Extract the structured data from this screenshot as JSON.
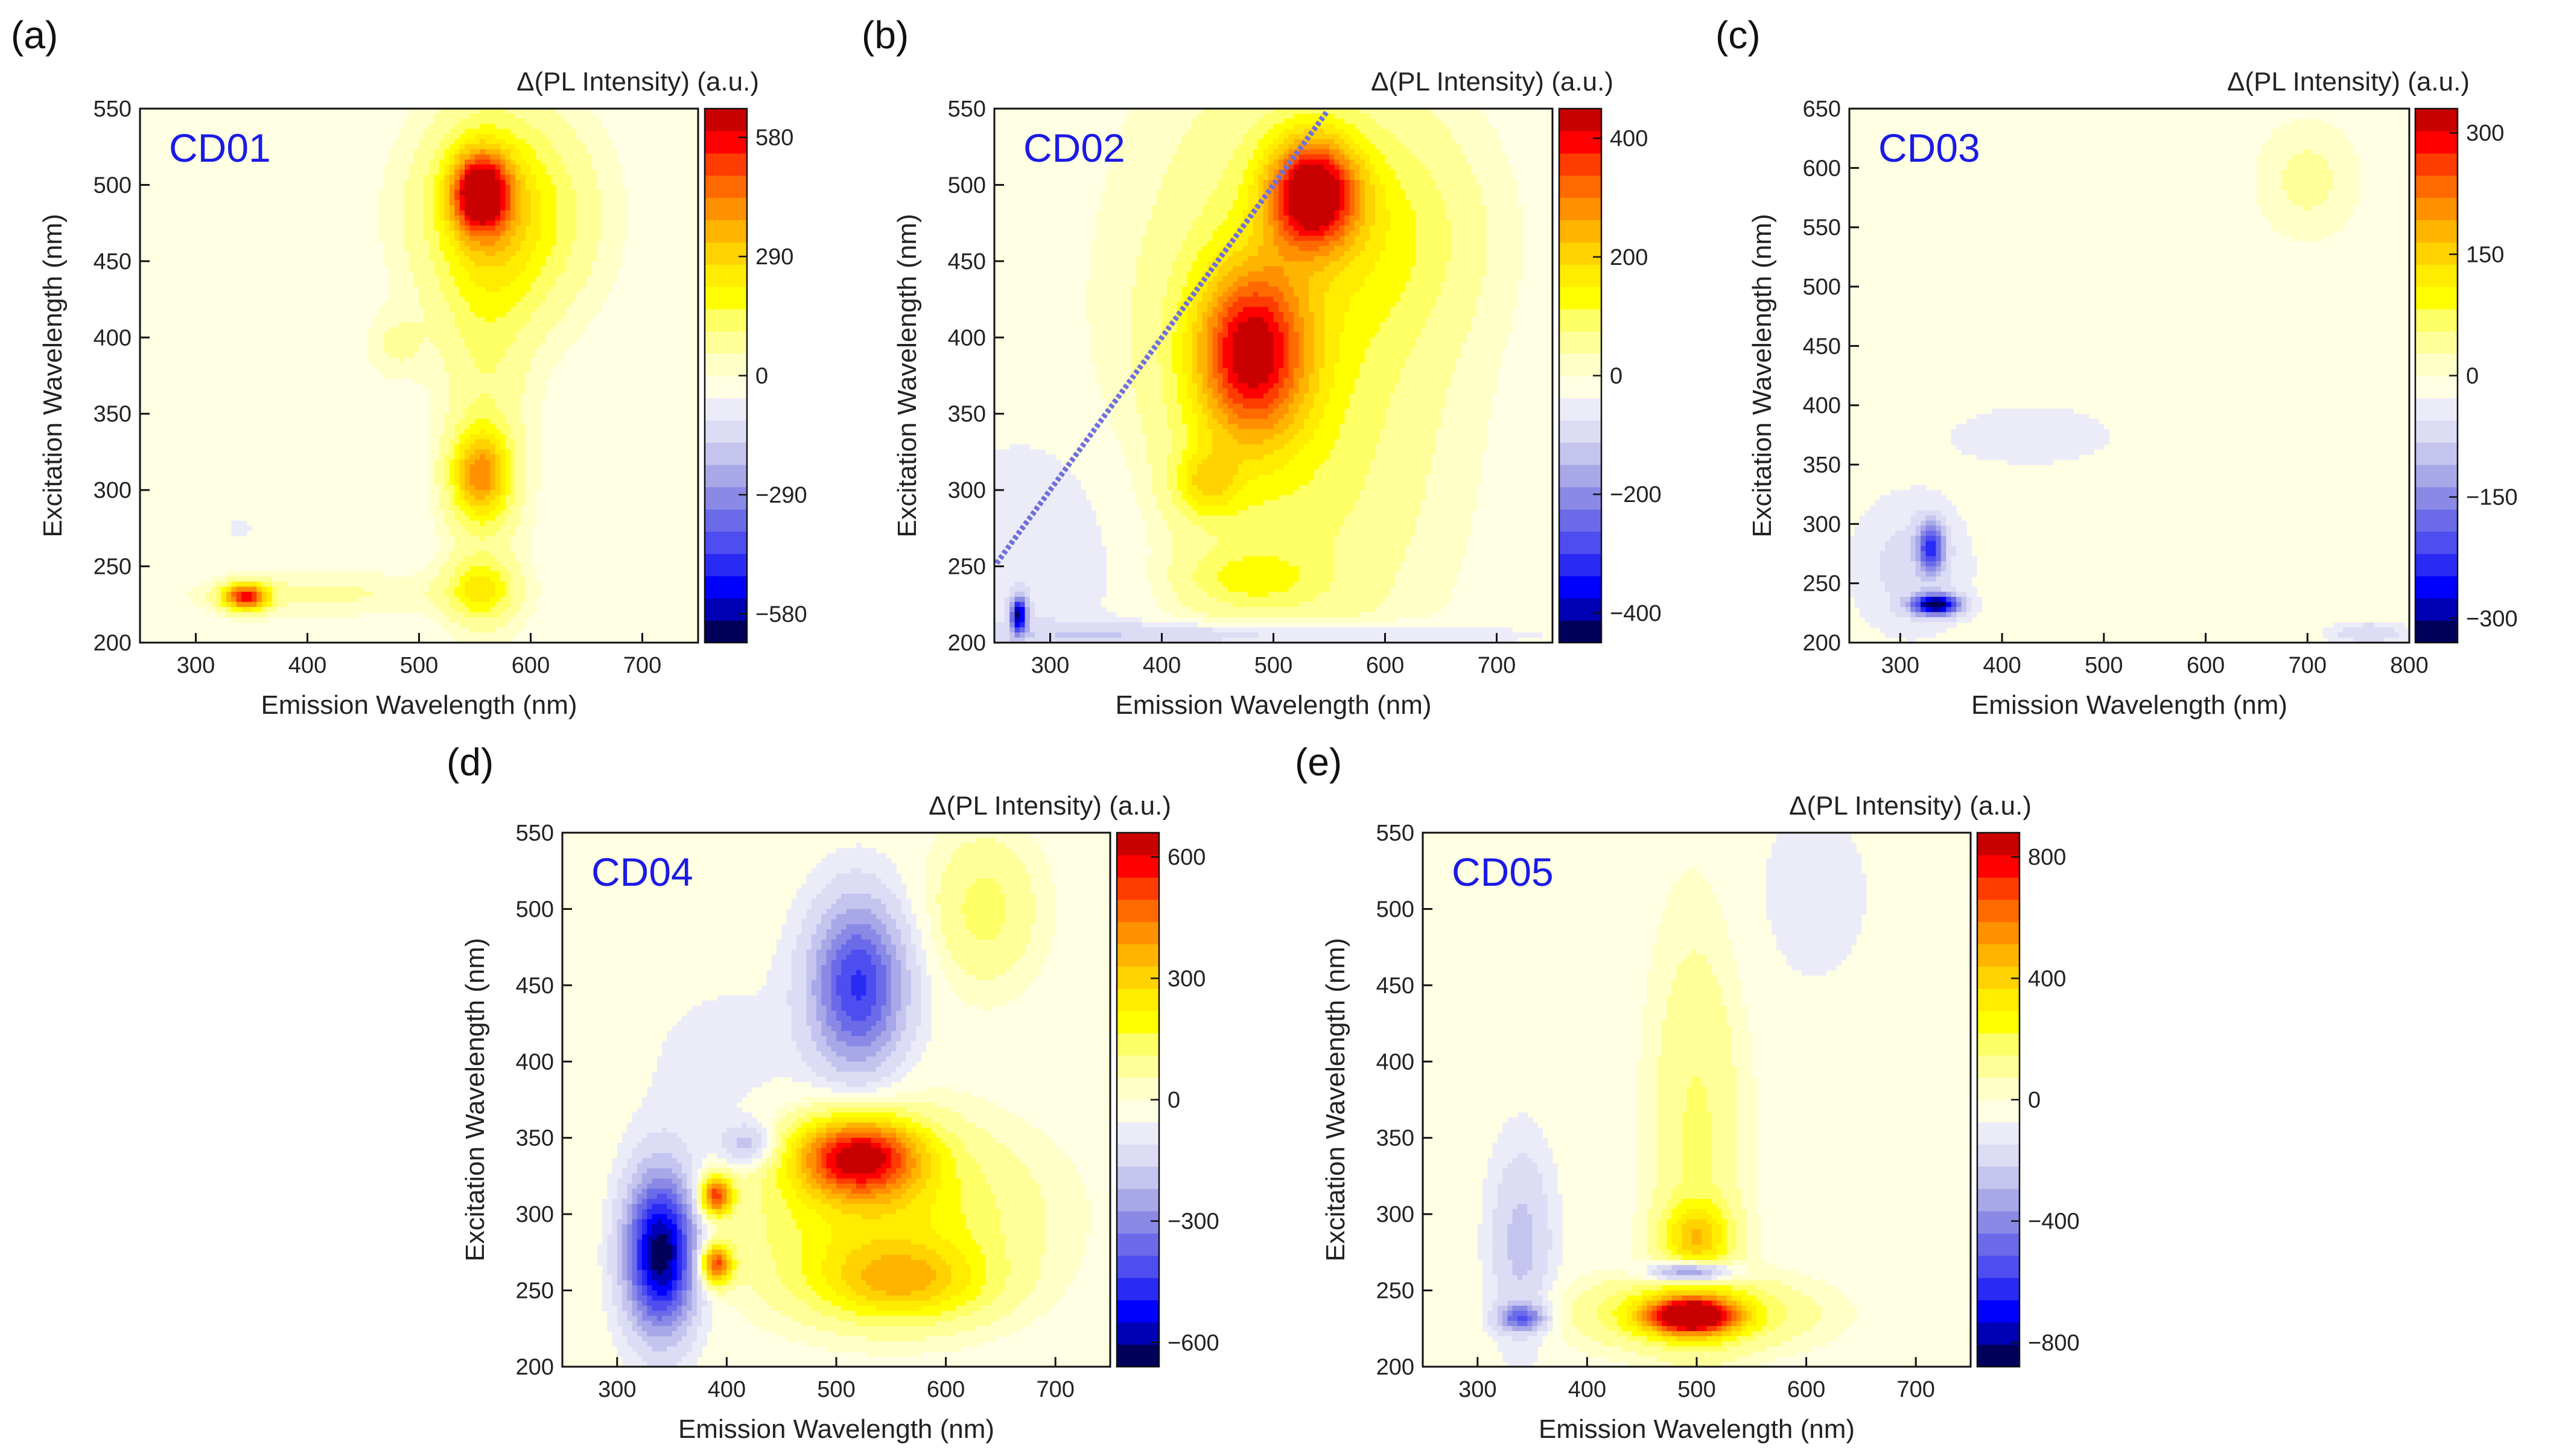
{
  "colorbar_scale": {
    "negative_colors": [
      "#00005a",
      "#0000b4",
      "#0000ff",
      "#2a2af5",
      "#4d4df0",
      "#6b6bea",
      "#8a8ae6",
      "#a8a8e8",
      "#c4c4ef",
      "#dcdcf4",
      "#ececf8"
    ],
    "zero_color": "#ffffe4",
    "positive_colors": [
      "#ffffc8",
      "#ffff9a",
      "#ffff66",
      "#ffff00",
      "#ffec00",
      "#ffd200",
      "#ffb400",
      "#ff9100",
      "#ff6a00",
      "#ff3c00",
      "#ff0000",
      "#c80000"
    ]
  },
  "chart_data": [
    {
      "type": "heatmap",
      "panel": "(a)",
      "sample": "CD01",
      "xlabel": "Emission Wavelength (nm)",
      "ylabel": "Excitation Wavelength (nm)",
      "colorbar_title": "Δ(PL Intensity) (a.u.)",
      "xlim": [
        250,
        750
      ],
      "ylim": [
        200,
        550
      ],
      "xticks": [
        300,
        400,
        500,
        600,
        700
      ],
      "yticks": [
        200,
        250,
        300,
        350,
        400,
        450,
        500,
        550
      ],
      "clim": [
        -650,
        650
      ],
      "colorbar_ticks": [
        580,
        290,
        0,
        -290,
        -580
      ],
      "colorbar_tick_labels": [
        "580",
        "290",
        "0",
        "−290",
        "−580"
      ],
      "features": [
        {
          "em": 555,
          "ex": 495,
          "value": 560,
          "sx": 18,
          "sy": 18
        },
        {
          "em": 575,
          "ex": 480,
          "value": 260,
          "sx": 50,
          "sy": 45
        },
        {
          "em": 555,
          "ex": 310,
          "value": 360,
          "sx": 18,
          "sy": 20
        },
        {
          "em": 555,
          "ex": 235,
          "value": 200,
          "sx": 20,
          "sy": 14
        },
        {
          "em": 560,
          "ex": 375,
          "value": 90,
          "sx": 28,
          "sy": 110
        },
        {
          "em": 345,
          "ex": 230,
          "value": 560,
          "sx": 14,
          "sy": 6
        },
        {
          "em": 420,
          "ex": 232,
          "value": 60,
          "sx": 90,
          "sy": 10
        },
        {
          "em": 480,
          "ex": 395,
          "value": 60,
          "sx": 18,
          "sy": 15
        },
        {
          "em": 340,
          "ex": 275,
          "value": -25,
          "sx": 20,
          "sy": 15
        }
      ]
    },
    {
      "type": "heatmap",
      "panel": "(b)",
      "sample": "CD02",
      "xlabel": "Emission Wavelength (nm)",
      "ylabel": "Excitation Wavelength (nm)",
      "colorbar_title": "Δ(PL Intensity) (a.u.)",
      "xlim": [
        250,
        750
      ],
      "ylim": [
        200,
        550
      ],
      "xticks": [
        300,
        400,
        500,
        600,
        700
      ],
      "yticks": [
        200,
        250,
        300,
        350,
        400,
        450,
        500,
        550
      ],
      "clim": [
        -450,
        450
      ],
      "colorbar_ticks": [
        400,
        200,
        0,
        -200,
        -400
      ],
      "colorbar_tick_labels": [
        "400",
        "200",
        "0",
        "−200",
        "−400"
      ],
      "features": [
        {
          "em": 535,
          "ex": 495,
          "value": 420,
          "sx": 28,
          "sy": 25
        },
        {
          "em": 480,
          "ex": 390,
          "value": 350,
          "sx": 35,
          "sy": 40
        },
        {
          "em": 510,
          "ex": 380,
          "value": 120,
          "sx": 90,
          "sy": 130
        },
        {
          "em": 440,
          "ex": 305,
          "value": 130,
          "sx": 20,
          "sy": 15
        },
        {
          "em": 480,
          "ex": 242,
          "value": 80,
          "sx": 40,
          "sy": 12
        },
        {
          "em": 600,
          "ex": 470,
          "value": 80,
          "sx": 60,
          "sy": 50
        },
        {
          "em": 300,
          "ex": 260,
          "value": -40,
          "sx": 70,
          "sy": 60
        },
        {
          "em": 272,
          "ex": 218,
          "value": -400,
          "sx": 5,
          "sy": 8
        },
        {
          "em": 450,
          "ex": 205,
          "value": -90,
          "sx": 160,
          "sy": 6
        }
      ]
    },
    {
      "type": "heatmap",
      "panel": "(c)",
      "sample": "CD03",
      "xlabel": "Emission Wavelength (nm)",
      "ylabel": "Excitation Wavelength (nm)",
      "colorbar_title": "Δ(PL Intensity) (a.u.)",
      "xlim": [
        250,
        800
      ],
      "ylim": [
        200,
        650
      ],
      "xticks": [
        300,
        400,
        500,
        600,
        700,
        800
      ],
      "yticks": [
        200,
        250,
        300,
        350,
        400,
        450,
        500,
        550,
        600,
        650
      ],
      "clim": [
        -330,
        330
      ],
      "colorbar_ticks": [
        300,
        150,
        0,
        -150,
        -300
      ],
      "colorbar_tick_labels": [
        "300",
        "150",
        "0",
        "−150",
        "−300"
      ],
      "features": [
        {
          "em": 700,
          "ex": 590,
          "value": 35,
          "sx": 35,
          "sy": 35
        },
        {
          "em": 330,
          "ex": 280,
          "value": -210,
          "sx": 9,
          "sy": 14
        },
        {
          "em": 335,
          "ex": 232,
          "value": -330,
          "sx": 16,
          "sy": 6
        },
        {
          "em": 310,
          "ex": 265,
          "value": -40,
          "sx": 40,
          "sy": 40
        },
        {
          "em": 430,
          "ex": 375,
          "value": -18,
          "sx": 80,
          "sy": 25
        },
        {
          "em": 760,
          "ex": 208,
          "value": -60,
          "sx": 25,
          "sy": 6
        }
      ]
    },
    {
      "type": "heatmap",
      "panel": "(d)",
      "sample": "CD04",
      "xlabel": "Emission Wavelength (nm)",
      "ylabel": "Excitation Wavelength (nm)",
      "colorbar_title": "Δ(PL Intensity) (a.u.)",
      "xlim": [
        250,
        750
      ],
      "ylim": [
        200,
        550
      ],
      "xticks": [
        300,
        400,
        500,
        600,
        700
      ],
      "yticks": [
        200,
        250,
        300,
        350,
        400,
        450,
        500,
        550
      ],
      "clim": [
        -660,
        660
      ],
      "colorbar_ticks": [
        600,
        300,
        0,
        -300,
        -600
      ],
      "colorbar_tick_labels": [
        "600",
        "300",
        "0",
        "−300",
        "−600"
      ],
      "features": [
        {
          "em": 340,
          "ex": 275,
          "value": -660,
          "sx": 22,
          "sy": 35
        },
        {
          "em": 520,
          "ex": 450,
          "value": -430,
          "sx": 30,
          "sy": 38
        },
        {
          "em": 420,
          "ex": 345,
          "value": -170,
          "sx": 18,
          "sy": 10
        },
        {
          "em": 390,
          "ex": 312,
          "value": 520,
          "sx": 10,
          "sy": 9
        },
        {
          "em": 390,
          "ex": 267,
          "value": 520,
          "sx": 10,
          "sy": 9
        },
        {
          "em": 520,
          "ex": 338,
          "value": 560,
          "sx": 40,
          "sy": 18
        },
        {
          "em": 540,
          "ex": 300,
          "value": 220,
          "sx": 90,
          "sy": 40
        },
        {
          "em": 560,
          "ex": 255,
          "value": 260,
          "sx": 55,
          "sy": 18
        },
        {
          "em": 635,
          "ex": 500,
          "value": 130,
          "sx": 35,
          "sy": 35
        },
        {
          "em": 400,
          "ex": 390,
          "value": -40,
          "sx": 60,
          "sy": 50
        }
      ]
    },
    {
      "type": "heatmap",
      "panel": "(e)",
      "sample": "CD05",
      "xlabel": "Emission Wavelength (nm)",
      "ylabel": "Excitation Wavelength (nm)",
      "colorbar_title": "Δ(PL Intensity) (a.u.)",
      "xlim": [
        250,
        750
      ],
      "ylim": [
        200,
        550
      ],
      "xticks": [
        300,
        400,
        500,
        600,
        700
      ],
      "yticks": [
        200,
        250,
        300,
        350,
        400,
        450,
        500,
        550
      ],
      "clim": [
        -880,
        880
      ],
      "colorbar_ticks": [
        800,
        400,
        0,
        -400,
        -800
      ],
      "colorbar_tick_labels": [
        "800",
        "400",
        "0",
        "−400",
        "−800"
      ],
      "features": [
        {
          "em": 495,
          "ex": 233,
          "value": 820,
          "sx": 28,
          "sy": 8
        },
        {
          "em": 495,
          "ex": 235,
          "value": 300,
          "sx": 70,
          "sy": 16
        },
        {
          "em": 495,
          "ex": 262,
          "value": -560,
          "sx": 25,
          "sy": 5
        },
        {
          "em": 500,
          "ex": 285,
          "value": 320,
          "sx": 22,
          "sy": 15
        },
        {
          "em": 500,
          "ex": 350,
          "value": 160,
          "sx": 30,
          "sy": 100
        },
        {
          "em": 340,
          "ex": 280,
          "value": -190,
          "sx": 20,
          "sy": 45
        },
        {
          "em": 340,
          "ex": 232,
          "value": -420,
          "sx": 15,
          "sy": 6
        },
        {
          "em": 605,
          "ex": 510,
          "value": -55,
          "sx": 45,
          "sy": 50
        }
      ]
    }
  ]
}
